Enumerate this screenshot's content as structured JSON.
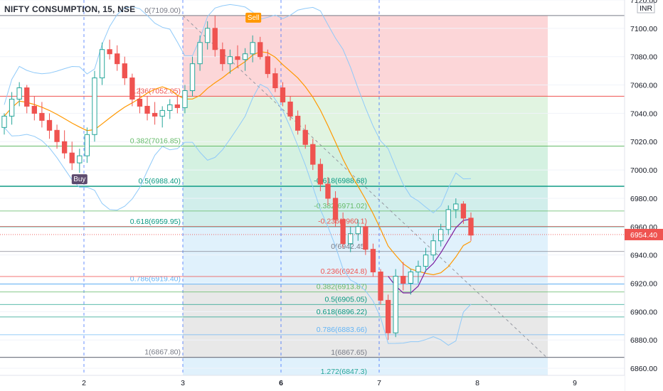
{
  "header": {
    "title": "NIFTY CONSUMPTION, 15, NSE",
    "currency": "INR"
  },
  "colors": {
    "up": "#26a69a",
    "down": "#ef5350",
    "band": "#90caf9",
    "ema": "#ff9800",
    "ma": "#7b1fa2",
    "price_tag": "#ef5350"
  },
  "chart_data": {
    "type": "candlestick",
    "y_axis": {
      "range": [
        6855,
        7120
      ],
      "ticks": [
        6860,
        6880,
        6900,
        6920,
        6940,
        6960,
        6980,
        7000,
        7020,
        7040,
        7060,
        7080,
        7100,
        7120
      ],
      "tick_labels": [
        "6860.00",
        "6880.00",
        "6900.00",
        "6920.00",
        "6940.00",
        "6960.00",
        "6980.00",
        "7000.00",
        "7020.00",
        "7040.00",
        "7060.00",
        "7080.00",
        "7100.00",
        "7120.00"
      ]
    },
    "x_axis": {
      "ticks": [
        2,
        3,
        6,
        7,
        8,
        9
      ],
      "tick_labels": [
        "2",
        "3",
        "6",
        "7",
        "8",
        "9"
      ]
    },
    "last_price": "6954.40",
    "markers": [
      {
        "label": "Buy",
        "price": 6998
      },
      {
        "label": "Sell",
        "price": 7108
      }
    ],
    "fib_upper": [
      {
        "level": 0,
        "price": 7109.0,
        "label": "0(7109.00)",
        "color": "#787b86"
      },
      {
        "level": 0.236,
        "price": 7052.05,
        "label": "0.236(7052.05)",
        "color": "#ef5350"
      },
      {
        "level": 0.382,
        "price": 7016.85,
        "label": "0.382(7016.85)",
        "color": "#66bb6a"
      },
      {
        "level": 0.5,
        "price": 6988.4,
        "label": "0.5(6988.40)",
        "color": "#089981"
      },
      {
        "level": 0.618,
        "price": 6959.95,
        "label": "0.618(6959.95)",
        "color": "#089981"
      },
      {
        "level": 0.786,
        "price": 6919.4,
        "label": "0.786(6919.40)",
        "color": "#64b5f6"
      },
      {
        "level": 1,
        "price": 6867.8,
        "label": "1(6867.80)",
        "color": "#787b86"
      }
    ],
    "fib_lower": [
      {
        "level": -0.618,
        "price": 6988.68,
        "label": "-0.618(6988.68)",
        "color": "#089981"
      },
      {
        "level": -0.382,
        "price": 6971.02,
        "label": "-0.382(6971.02)",
        "color": "#66bb6a"
      },
      {
        "level": -0.236,
        "price": 6960.1,
        "label": "-0.236(6960.1)",
        "color": "#ef5350"
      },
      {
        "level": 0,
        "price": 6942.45,
        "label": "0(6942.45)",
        "color": "#787b86"
      },
      {
        "level": 0.236,
        "price": 6924.8,
        "label": "0.236(6924.8)",
        "color": "#ef5350"
      },
      {
        "level": 0.382,
        "price": 6913.87,
        "label": "0.382(6913.87)",
        "color": "#66bb6a"
      },
      {
        "level": 0.5,
        "price": 6905.05,
        "label": "0.5(6905.05)",
        "color": "#089981"
      },
      {
        "level": 0.618,
        "price": 6896.22,
        "label": "0.618(6896.22)",
        "color": "#089981"
      },
      {
        "level": 0.786,
        "price": 6883.66,
        "label": "0.786(6883.66)",
        "color": "#64b5f6"
      },
      {
        "level": 1,
        "price": 6867.65,
        "label": "1(6867.65)",
        "color": "#787b86"
      },
      {
        "level": 1.272,
        "price": 6847.3,
        "label": "1.272(6847.3)",
        "color": "#26a69a"
      }
    ],
    "candles": [
      [
        7030,
        7040,
        7025,
        7038
      ],
      [
        7038,
        7055,
        7032,
        7050
      ],
      [
        7050,
        7062,
        7045,
        7058
      ],
      [
        7058,
        7060,
        7040,
        7045
      ],
      [
        7045,
        7052,
        7035,
        7040
      ],
      [
        7040,
        7048,
        7030,
        7035
      ],
      [
        7035,
        7040,
        7022,
        7028
      ],
      [
        7028,
        7032,
        7015,
        7020
      ],
      [
        7020,
        7028,
        7008,
        7012
      ],
      [
        7012,
        7020,
        7000,
        7005
      ],
      [
        7005,
        7015,
        6998,
        7010
      ],
      [
        7010,
        7030,
        7005,
        7025
      ],
      [
        7025,
        7070,
        7020,
        7065
      ],
      [
        7065,
        7090,
        7060,
        7085
      ],
      [
        7085,
        7092,
        7078,
        7082
      ],
      [
        7082,
        7088,
        7070,
        7075
      ],
      [
        7075,
        7080,
        7060,
        7065
      ],
      [
        7065,
        7068,
        7045,
        7050
      ],
      [
        7050,
        7058,
        7040,
        7045
      ],
      [
        7045,
        7052,
        7035,
        7040
      ],
      [
        7040,
        7048,
        7032,
        7038
      ],
      [
        7038,
        7045,
        7030,
        7042
      ],
      [
        7042,
        7050,
        7036,
        7046
      ],
      [
        7046,
        7052,
        7040,
        7044
      ],
      [
        7044,
        7060,
        7040,
        7056
      ],
      [
        7056,
        7080,
        7052,
        7075
      ],
      [
        7075,
        7095,
        7070,
        7090
      ],
      [
        7090,
        7105,
        7085,
        7100
      ],
      [
        7100,
        7109,
        7080,
        7085
      ],
      [
        7085,
        7090,
        7070,
        7075
      ],
      [
        7075,
        7085,
        7068,
        7080
      ],
      [
        7080,
        7088,
        7072,
        7078
      ],
      [
        7078,
        7086,
        7070,
        7082
      ],
      [
        7082,
        7095,
        7076,
        7090
      ],
      [
        7090,
        7094,
        7078,
        7080
      ],
      [
        7080,
        7085,
        7065,
        7068
      ],
      [
        7068,
        7072,
        7055,
        7058
      ],
      [
        7058,
        7062,
        7045,
        7048
      ],
      [
        7048,
        7052,
        7035,
        7038
      ],
      [
        7038,
        7042,
        7025,
        7028
      ],
      [
        7028,
        7032,
        7015,
        7018
      ],
      [
        7018,
        7022,
        7000,
        7004
      ],
      [
        7004,
        7008,
        6985,
        6990
      ],
      [
        6990,
        6995,
        6975,
        6980
      ],
      [
        6980,
        6985,
        6960,
        6965
      ],
      [
        6965,
        6970,
        6945,
        6948
      ],
      [
        6948,
        6960,
        6942,
        6955
      ],
      [
        6955,
        6965,
        6950,
        6960
      ],
      [
        6960,
        6962,
        6940,
        6944
      ],
      [
        6944,
        6948,
        6925,
        6928
      ],
      [
        6928,
        6930,
        6905,
        6908
      ],
      [
        6908,
        6912,
        6880,
        6885
      ],
      [
        6885,
        6930,
        6882,
        6925
      ],
      [
        6925,
        6935,
        6915,
        6920
      ],
      [
        6920,
        6930,
        6912,
        6928
      ],
      [
        6928,
        6936,
        6920,
        6932
      ],
      [
        6932,
        6945,
        6928,
        6940
      ],
      [
        6940,
        6955,
        6936,
        6950
      ],
      [
        6950,
        6962,
        6946,
        6958
      ],
      [
        6958,
        6975,
        6954,
        6972
      ],
      [
        6972,
        6980,
        6966,
        6976
      ],
      [
        6976,
        6978,
        6962,
        6966
      ],
      [
        6966,
        6970,
        6950,
        6954
      ]
    ]
  }
}
